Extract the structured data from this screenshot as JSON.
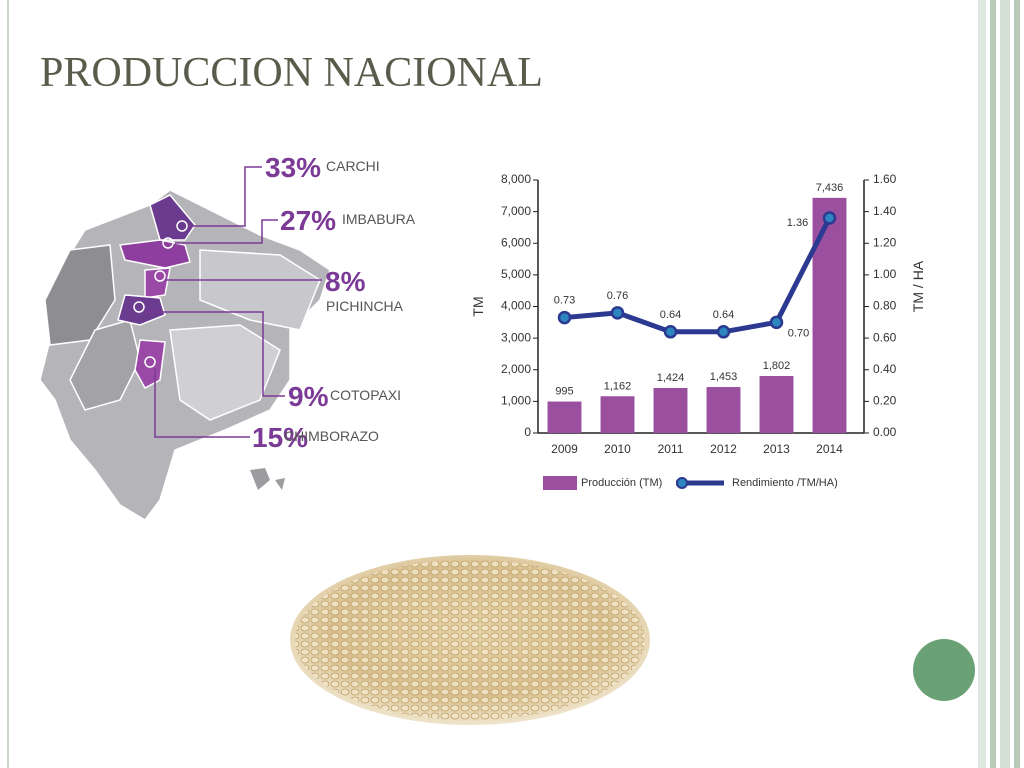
{
  "title": "PRODUCCION NACIONAL",
  "map": {
    "regions": [
      {
        "percent": "33%",
        "name": "CARCHI"
      },
      {
        "percent": "27%",
        "name": "IMBABURA"
      },
      {
        "percent": "8%",
        "name": "PICHINCHA"
      },
      {
        "percent": "9%",
        "name": "COTOPAXI"
      },
      {
        "percent": "15%",
        "name": "CHIMBORAZO"
      }
    ]
  },
  "chart_data": {
    "type": "bar",
    "categories": [
      "2009",
      "2010",
      "2011",
      "2012",
      "2013",
      "2014"
    ],
    "y_label": "TM",
    "y2_label": "TM / HA",
    "ylim": [
      0,
      8000
    ],
    "yticks": [
      0,
      {
        "value": 1000,
        "label": "1,000"
      },
      {
        "value": 2000,
        "label": "2,000"
      },
      {
        "value": 3000,
        "label": "3,000"
      },
      {
        "value": 4000,
        "label": "4,000"
      },
      {
        "value": 5000,
        "label": "5,000"
      },
      {
        "value": 6000,
        "label": "6,000"
      },
      {
        "value": 7000,
        "label": "7,000"
      },
      {
        "value": 8000,
        "label": "8,000"
      }
    ],
    "y2lim": [
      0,
      1.6
    ],
    "y2ticks": [
      {
        "value": 0,
        "label": "0.00"
      },
      {
        "value": 0.2,
        "label": "0.20"
      },
      {
        "value": 0.4,
        "label": "0.40"
      },
      {
        "value": 0.6,
        "label": "0.60"
      },
      {
        "value": 0.8,
        "label": "0.80"
      },
      {
        "value": 1.0,
        "label": "1.00"
      },
      {
        "value": 1.2,
        "label": "1.20"
      },
      {
        "value": 1.4,
        "label": "1.40"
      },
      {
        "value": 1.6,
        "label": "1.60"
      }
    ],
    "series": [
      {
        "name": "Producción (TM)",
        "type": "bar",
        "color": "#9b4f9f",
        "values": [
          995,
          1162,
          1424,
          1453,
          1802,
          7436
        ],
        "value_labels": [
          "995",
          "1,162",
          "1,424",
          "1,453",
          "1,802",
          "7,436"
        ]
      },
      {
        "name": "Rendimiento /TM/HA)",
        "type": "line",
        "axis": "y2",
        "color": "#2b3990",
        "values": [
          0.73,
          0.76,
          0.64,
          0.64,
          0.7,
          1.36
        ],
        "value_labels": [
          "0.73",
          "0.76",
          "0.64",
          "0.64",
          "0.70",
          "1.36"
        ]
      }
    ],
    "legend": "bottom"
  }
}
